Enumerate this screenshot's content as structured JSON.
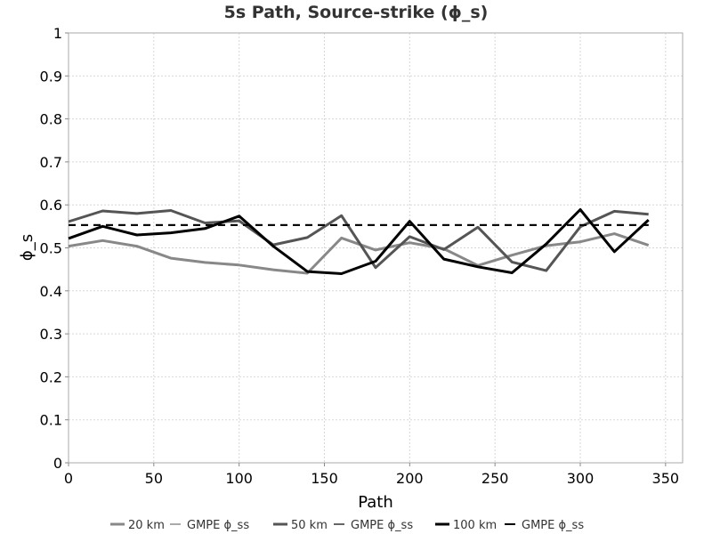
{
  "chart_data": {
    "type": "line",
    "title": "5s Path, Source-strike (ϕ_s)",
    "xlabel": "Path",
    "ylabel": "ϕ_s",
    "xlim": [
      0,
      360
    ],
    "ylim": [
      0,
      1
    ],
    "x_ticks": [
      0,
      50,
      100,
      150,
      200,
      250,
      300,
      350
    ],
    "y_ticks": [
      0,
      0.1,
      0.2,
      0.3,
      0.4,
      0.5,
      0.6,
      0.7,
      0.8,
      0.9,
      1
    ],
    "y_tick_labels": [
      "0",
      "0.1",
      "0.2",
      "0.3",
      "0.4",
      "0.5",
      "0.6",
      "0.7",
      "0.8",
      "0.9",
      "1"
    ],
    "grid": true,
    "legend_position": "bottom",
    "x": [
      0,
      20,
      40,
      60,
      80,
      100,
      120,
      140,
      160,
      180,
      200,
      220,
      240,
      260,
      280,
      300,
      320,
      340
    ],
    "series": [
      {
        "name": "20 km",
        "color": "#888888",
        "style": "solid",
        "values": [
          0.504,
          0.517,
          0.504,
          0.476,
          0.466,
          0.46,
          0.449,
          0.441,
          0.523,
          0.495,
          0.512,
          0.498,
          0.459,
          0.483,
          0.505,
          0.514,
          0.533,
          0.506
        ]
      },
      {
        "name": "GMPE ϕ_ss",
        "color": "#aaaaaa",
        "style": "dashed",
        "values": [
          0.553,
          0.553,
          0.553,
          0.553,
          0.553,
          0.553,
          0.553,
          0.553,
          0.553,
          0.553,
          0.553,
          0.553,
          0.553,
          0.553,
          0.553,
          0.553,
          0.553,
          0.553
        ]
      },
      {
        "name": "50 km",
        "color": "#555555",
        "style": "solid",
        "values": [
          0.561,
          0.586,
          0.58,
          0.587,
          0.558,
          0.563,
          0.507,
          0.524,
          0.575,
          0.454,
          0.526,
          0.496,
          0.548,
          0.467,
          0.447,
          0.549,
          0.585,
          0.578
        ]
      },
      {
        "name": "GMPE ϕ_ss",
        "color": "#666666",
        "style": "dashed",
        "values": [
          0.553,
          0.553,
          0.553,
          0.553,
          0.553,
          0.553,
          0.553,
          0.553,
          0.553,
          0.553,
          0.553,
          0.553,
          0.553,
          0.553,
          0.553,
          0.553,
          0.553,
          0.553
        ]
      },
      {
        "name": "100 km",
        "color": "#000000",
        "style": "solid",
        "values": [
          0.522,
          0.55,
          0.53,
          0.535,
          0.545,
          0.574,
          0.504,
          0.445,
          0.44,
          0.469,
          0.562,
          0.474,
          0.456,
          0.442,
          0.509,
          0.589,
          0.491,
          0.565
        ]
      },
      {
        "name": "GMPE ϕ_ss",
        "color": "#000000",
        "style": "dashed",
        "values": [
          0.553,
          0.553,
          0.553,
          0.553,
          0.553,
          0.553,
          0.553,
          0.553,
          0.553,
          0.553,
          0.553,
          0.553,
          0.553,
          0.553,
          0.553,
          0.553,
          0.553,
          0.553
        ]
      }
    ]
  }
}
